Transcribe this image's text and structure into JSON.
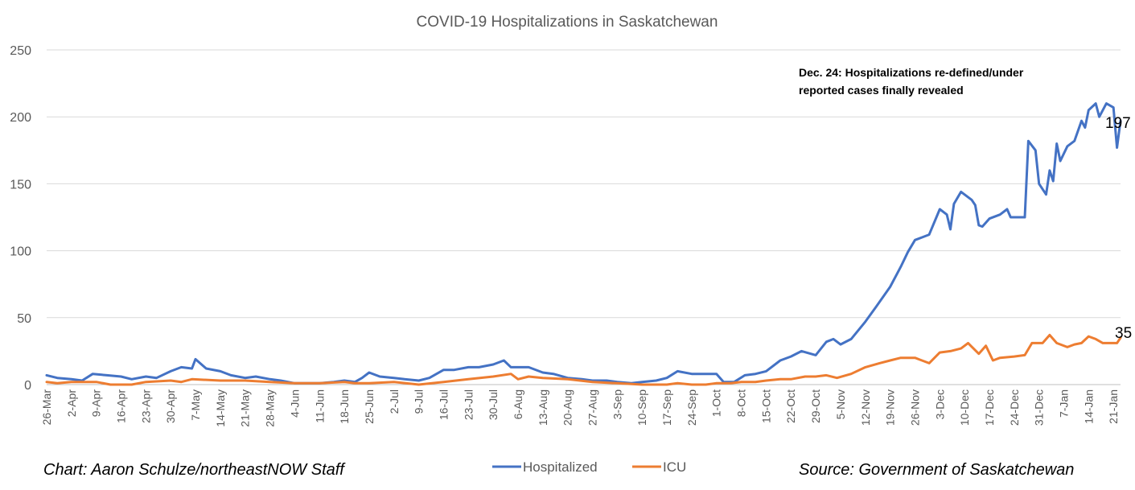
{
  "chart_data": {
    "type": "line",
    "title": "COVID-19 Hospitalizations in Saskatchewan",
    "xlabel": "",
    "ylabel": "",
    "ylim": [
      0,
      250
    ],
    "yticks": [
      0,
      50,
      100,
      150,
      200,
      250
    ],
    "grid": "horizontal",
    "legend": "bottom",
    "x_start": "2020-03-26",
    "x_end": "2021-01-23",
    "x_tick_labels": [
      "26-Mar",
      "2-Apr",
      "9-Apr",
      "16-Apr",
      "23-Apr",
      "30-Apr",
      "7-May",
      "14-May",
      "21-May",
      "28-May",
      "4-Jun",
      "11-Jun",
      "18-Jun",
      "25-Jun",
      "2-Jul",
      "9-Jul",
      "16-Jul",
      "23-Jul",
      "30-Jul",
      "6-Aug",
      "13-Aug",
      "20-Aug",
      "27-Aug",
      "3-Sep",
      "10-Sep",
      "17-Sep",
      "24-Sep",
      "1-Oct",
      "8-Oct",
      "15-Oct",
      "22-Oct",
      "29-Oct",
      "5-Nov",
      "12-Nov",
      "19-Nov",
      "26-Nov",
      "3-Dec",
      "10-Dec",
      "17-Dec",
      "24-Dec",
      "31-Dec",
      "7-Jan",
      "14-Jan",
      "21-Jan"
    ],
    "series": [
      {
        "name": "Hospitalized",
        "color": "#4472C4",
        "points": [
          [
            "2020-03-26",
            7
          ],
          [
            "2020-03-29",
            5
          ],
          [
            "2020-04-02",
            4
          ],
          [
            "2020-04-05",
            3
          ],
          [
            "2020-04-08",
            8
          ],
          [
            "2020-04-12",
            7
          ],
          [
            "2020-04-16",
            6
          ],
          [
            "2020-04-19",
            4
          ],
          [
            "2020-04-23",
            6
          ],
          [
            "2020-04-26",
            5
          ],
          [
            "2020-04-30",
            10
          ],
          [
            "2020-05-03",
            13
          ],
          [
            "2020-05-06",
            12
          ],
          [
            "2020-05-07",
            19
          ],
          [
            "2020-05-10",
            12
          ],
          [
            "2020-05-14",
            10
          ],
          [
            "2020-05-17",
            7
          ],
          [
            "2020-05-21",
            5
          ],
          [
            "2020-05-24",
            6
          ],
          [
            "2020-05-28",
            4
          ],
          [
            "2020-05-31",
            3
          ],
          [
            "2020-06-04",
            1
          ],
          [
            "2020-06-08",
            1
          ],
          [
            "2020-06-11",
            1
          ],
          [
            "2020-06-15",
            2
          ],
          [
            "2020-06-18",
            3
          ],
          [
            "2020-06-21",
            2
          ],
          [
            "2020-06-23",
            5
          ],
          [
            "2020-06-25",
            9
          ],
          [
            "2020-06-28",
            6
          ],
          [
            "2020-07-02",
            5
          ],
          [
            "2020-07-05",
            4
          ],
          [
            "2020-07-09",
            3
          ],
          [
            "2020-07-12",
            5
          ],
          [
            "2020-07-16",
            11
          ],
          [
            "2020-07-19",
            11
          ],
          [
            "2020-07-23",
            13
          ],
          [
            "2020-07-26",
            13
          ],
          [
            "2020-07-30",
            15
          ],
          [
            "2020-08-02",
            18
          ],
          [
            "2020-08-04",
            13
          ],
          [
            "2020-08-09",
            13
          ],
          [
            "2020-08-13",
            9
          ],
          [
            "2020-08-16",
            8
          ],
          [
            "2020-08-20",
            5
          ],
          [
            "2020-08-24",
            4
          ],
          [
            "2020-08-27",
            3
          ],
          [
            "2020-08-31",
            3
          ],
          [
            "2020-09-03",
            2
          ],
          [
            "2020-09-07",
            1
          ],
          [
            "2020-09-10",
            2
          ],
          [
            "2020-09-14",
            3
          ],
          [
            "2020-09-17",
            5
          ],
          [
            "2020-09-20",
            10
          ],
          [
            "2020-09-24",
            8
          ],
          [
            "2020-09-28",
            8
          ],
          [
            "2020-10-01",
            8
          ],
          [
            "2020-10-03",
            2
          ],
          [
            "2020-10-06",
            2
          ],
          [
            "2020-10-09",
            7
          ],
          [
            "2020-10-12",
            8
          ],
          [
            "2020-10-15",
            10
          ],
          [
            "2020-10-19",
            18
          ],
          [
            "2020-10-22",
            21
          ],
          [
            "2020-10-25",
            25
          ],
          [
            "2020-10-29",
            22
          ],
          [
            "2020-11-01",
            32
          ],
          [
            "2020-11-03",
            34
          ],
          [
            "2020-11-05",
            30
          ],
          [
            "2020-11-08",
            34
          ],
          [
            "2020-11-12",
            47
          ],
          [
            "2020-11-15",
            58
          ],
          [
            "2020-11-19",
            73
          ],
          [
            "2020-11-22",
            88
          ],
          [
            "2020-11-24",
            99
          ],
          [
            "2020-11-26",
            108
          ],
          [
            "2020-11-28",
            110
          ],
          [
            "2020-11-30",
            112
          ],
          [
            "2020-12-03",
            131
          ],
          [
            "2020-12-05",
            127
          ],
          [
            "2020-12-06",
            116
          ],
          [
            "2020-12-07",
            135
          ],
          [
            "2020-12-09",
            144
          ],
          [
            "2020-12-12",
            138
          ],
          [
            "2020-12-13",
            134
          ],
          [
            "2020-12-14",
            119
          ],
          [
            "2020-12-15",
            118
          ],
          [
            "2020-12-17",
            124
          ],
          [
            "2020-12-20",
            127
          ],
          [
            "2020-12-22",
            131
          ],
          [
            "2020-12-23",
            125
          ],
          [
            "2020-12-24",
            125
          ],
          [
            "2020-12-27",
            125
          ],
          [
            "2020-12-28",
            182
          ],
          [
            "2020-12-30",
            175
          ],
          [
            "2020-12-31",
            150
          ],
          [
            "2021-01-02",
            142
          ],
          [
            "2021-01-03",
            160
          ],
          [
            "2021-01-04",
            152
          ],
          [
            "2021-01-05",
            180
          ],
          [
            "2021-01-06",
            167
          ],
          [
            "2021-01-08",
            178
          ],
          [
            "2021-01-10",
            182
          ],
          [
            "2021-01-12",
            197
          ],
          [
            "2021-01-13",
            192
          ],
          [
            "2021-01-14",
            205
          ],
          [
            "2021-01-16",
            210
          ],
          [
            "2021-01-17",
            200
          ],
          [
            "2021-01-19",
            210
          ],
          [
            "2021-01-21",
            207
          ],
          [
            "2021-01-22",
            177
          ],
          [
            "2021-01-23",
            197
          ]
        ]
      },
      {
        "name": "ICU",
        "color": "#ED7D31",
        "points": [
          [
            "2020-03-26",
            2
          ],
          [
            "2020-03-29",
            1
          ],
          [
            "2020-04-02",
            2
          ],
          [
            "2020-04-09",
            2
          ],
          [
            "2020-04-13",
            0
          ],
          [
            "2020-04-19",
            0
          ],
          [
            "2020-04-23",
            2
          ],
          [
            "2020-04-30",
            3
          ],
          [
            "2020-05-03",
            2
          ],
          [
            "2020-05-06",
            4
          ],
          [
            "2020-05-14",
            3
          ],
          [
            "2020-05-21",
            3
          ],
          [
            "2020-05-28",
            2
          ],
          [
            "2020-06-04",
            1
          ],
          [
            "2020-06-11",
            1
          ],
          [
            "2020-06-18",
            2
          ],
          [
            "2020-06-21",
            1
          ],
          [
            "2020-06-25",
            1
          ],
          [
            "2020-07-02",
            2
          ],
          [
            "2020-07-09",
            0
          ],
          [
            "2020-07-16",
            2
          ],
          [
            "2020-07-23",
            4
          ],
          [
            "2020-07-30",
            6
          ],
          [
            "2020-08-04",
            8
          ],
          [
            "2020-08-06",
            4
          ],
          [
            "2020-08-09",
            6
          ],
          [
            "2020-08-13",
            5
          ],
          [
            "2020-08-20",
            4
          ],
          [
            "2020-08-27",
            2
          ],
          [
            "2020-09-03",
            1
          ],
          [
            "2020-09-10",
            0
          ],
          [
            "2020-09-17",
            0
          ],
          [
            "2020-09-20",
            1
          ],
          [
            "2020-09-24",
            0
          ],
          [
            "2020-09-28",
            0
          ],
          [
            "2020-10-01",
            1
          ],
          [
            "2020-10-05",
            1
          ],
          [
            "2020-10-08",
            2
          ],
          [
            "2020-10-12",
            2
          ],
          [
            "2020-10-15",
            3
          ],
          [
            "2020-10-19",
            4
          ],
          [
            "2020-10-22",
            4
          ],
          [
            "2020-10-26",
            6
          ],
          [
            "2020-10-29",
            6
          ],
          [
            "2020-11-01",
            7
          ],
          [
            "2020-11-04",
            5
          ],
          [
            "2020-11-08",
            8
          ],
          [
            "2020-11-12",
            13
          ],
          [
            "2020-11-16",
            16
          ],
          [
            "2020-11-19",
            18
          ],
          [
            "2020-11-22",
            20
          ],
          [
            "2020-11-26",
            20
          ],
          [
            "2020-11-30",
            16
          ],
          [
            "2020-12-03",
            24
          ],
          [
            "2020-12-06",
            25
          ],
          [
            "2020-12-09",
            27
          ],
          [
            "2020-12-11",
            31
          ],
          [
            "2020-12-14",
            23
          ],
          [
            "2020-12-16",
            29
          ],
          [
            "2020-12-18",
            18
          ],
          [
            "2020-12-20",
            20
          ],
          [
            "2020-12-24",
            21
          ],
          [
            "2020-12-27",
            22
          ],
          [
            "2020-12-29",
            31
          ],
          [
            "2021-01-01",
            31
          ],
          [
            "2021-01-03",
            37
          ],
          [
            "2021-01-05",
            31
          ],
          [
            "2021-01-08",
            28
          ],
          [
            "2021-01-10",
            30
          ],
          [
            "2021-01-12",
            31
          ],
          [
            "2021-01-14",
            36
          ],
          [
            "2021-01-16",
            34
          ],
          [
            "2021-01-18",
            31
          ],
          [
            "2021-01-22",
            31
          ],
          [
            "2021-01-23",
            35
          ]
        ]
      }
    ],
    "annotations": [
      {
        "text_lines": [
          "Dec. 24: Hospitalizations re-defined/under",
          "reported cases finally revealed"
        ]
      },
      {
        "series": "Hospitalized",
        "label": "197"
      },
      {
        "series": "ICU",
        "label": "35"
      }
    ],
    "footer_left": "Chart: Aaron Schulze/northeastNOW Staff",
    "footer_right": "Source: Government of Saskatchewan"
  }
}
